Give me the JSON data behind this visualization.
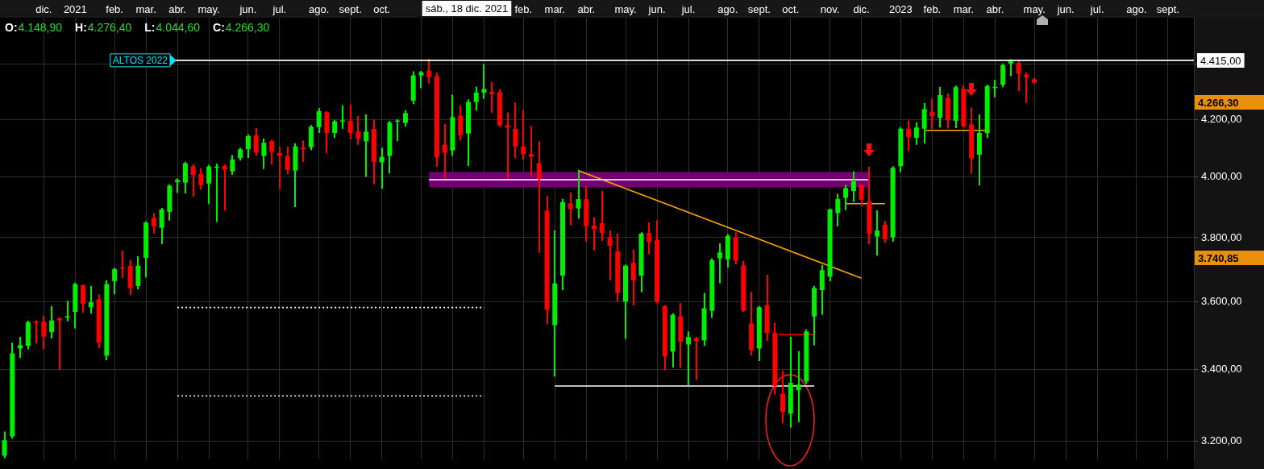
{
  "chart_data": {
    "type": "candlestick",
    "log": true,
    "grid": true,
    "legend": false,
    "xlim": [
      "2020-10-27",
      "2023-09-25"
    ],
    "xticks": [
      {
        "value": "2020-12-05",
        "label": "dic."
      },
      {
        "value": "2021-01-02",
        "label": "2021"
      },
      {
        "value": "2021-02-06",
        "label": "feb."
      },
      {
        "value": "2021-03-06",
        "label": "mar."
      },
      {
        "value": "2021-04-03",
        "label": "abr."
      },
      {
        "value": "2021-05-01",
        "label": "may."
      },
      {
        "value": "2021-06-05",
        "label": "jun."
      },
      {
        "value": "2021-07-03",
        "label": "jul."
      },
      {
        "value": "2021-08-07",
        "label": "ago."
      },
      {
        "value": "2021-09-04",
        "label": "sept."
      },
      {
        "value": "2021-10-02",
        "label": "oct."
      },
      {
        "value": "2021-11-06",
        "label": null
      },
      {
        "value": "2021-12-04",
        "label": null
      },
      {
        "value": "2022-01-01",
        "label": null
      },
      {
        "value": "2022-02-05",
        "label": "feb."
      },
      {
        "value": "2022-03-05",
        "label": "mar."
      },
      {
        "value": "2022-04-02",
        "label": "abr."
      },
      {
        "value": "2022-05-07",
        "label": "may."
      },
      {
        "value": "2022-06-04",
        "label": "jun."
      },
      {
        "value": "2022-07-02",
        "label": "jul."
      },
      {
        "value": "2022-08-06",
        "label": "ago."
      },
      {
        "value": "2022-09-03",
        "label": "sept."
      },
      {
        "value": "2022-10-01",
        "label": "oct."
      },
      {
        "value": "2022-11-05",
        "label": "nov."
      },
      {
        "value": "2022-12-03",
        "label": "dic."
      },
      {
        "value": "2023-01-07",
        "label": "2023"
      },
      {
        "value": "2023-02-04",
        "label": "feb."
      },
      {
        "value": "2023-03-04",
        "label": "mar."
      },
      {
        "value": "2023-04-01",
        "label": "abr."
      },
      {
        "value": "2023-05-06",
        "label": "may."
      },
      {
        "value": "2023-06-03",
        "label": "jun."
      },
      {
        "value": "2023-07-01",
        "label": "jul."
      },
      {
        "value": "2023-08-05",
        "label": "ago."
      },
      {
        "value": "2023-09-02",
        "label": "sept."
      }
    ],
    "ylim": [
      3150,
      4577
    ],
    "yticks": [
      {
        "value": 3200,
        "label": "3.200,00"
      },
      {
        "value": 3400,
        "label": "3.400,00"
      },
      {
        "value": 3600,
        "label": "3.600,00"
      },
      {
        "value": 3800,
        "label": "3.800,00"
      },
      {
        "value": 4000,
        "label": "4.000,00"
      },
      {
        "value": 4200,
        "label": "4.200,00"
      },
      {
        "value": 4400,
        "label": null
      }
    ],
    "x": [
      "2020-10-31",
      "2020-11-07",
      "2020-11-14",
      "2020-11-21",
      "2020-11-28",
      "2020-12-05",
      "2020-12-12",
      "2020-12-19",
      "2020-12-26",
      "2021-01-02",
      "2021-01-09",
      "2021-01-16",
      "2021-01-23",
      "2021-01-30",
      "2021-02-06",
      "2021-02-13",
      "2021-02-20",
      "2021-02-27",
      "2021-03-06",
      "2021-03-13",
      "2021-03-20",
      "2021-03-27",
      "2021-04-03",
      "2021-04-10",
      "2021-04-17",
      "2021-04-24",
      "2021-05-01",
      "2021-05-08",
      "2021-05-15",
      "2021-05-22",
      "2021-05-29",
      "2021-06-05",
      "2021-06-12",
      "2021-06-19",
      "2021-06-26",
      "2021-07-03",
      "2021-07-10",
      "2021-07-17",
      "2021-07-24",
      "2021-07-31",
      "2021-08-07",
      "2021-08-14",
      "2021-08-21",
      "2021-08-28",
      "2021-09-04",
      "2021-09-11",
      "2021-09-18",
      "2021-09-25",
      "2021-10-02",
      "2021-10-09",
      "2021-10-16",
      "2021-10-23",
      "2021-10-30",
      "2021-11-06",
      "2021-11-13",
      "2021-11-20",
      "2021-11-27",
      "2021-12-04",
      "2021-12-11",
      "2021-12-18",
      "2021-12-25",
      "2022-01-01",
      "2022-01-08",
      "2022-01-15",
      "2022-01-22",
      "2022-01-29",
      "2022-02-05",
      "2022-02-12",
      "2022-02-19",
      "2022-02-26",
      "2022-03-05",
      "2022-03-12",
      "2022-03-19",
      "2022-03-26",
      "2022-04-02",
      "2022-04-09",
      "2022-04-16",
      "2022-04-23",
      "2022-04-30",
      "2022-05-07",
      "2022-05-14",
      "2022-05-21",
      "2022-05-28",
      "2022-06-04",
      "2022-06-11",
      "2022-06-18",
      "2022-06-25",
      "2022-07-02",
      "2022-07-09",
      "2022-07-16",
      "2022-07-23",
      "2022-07-30",
      "2022-08-06",
      "2022-08-13",
      "2022-08-20",
      "2022-08-27",
      "2022-09-03",
      "2022-09-10",
      "2022-09-17",
      "2022-09-24",
      "2022-10-01",
      "2022-10-08",
      "2022-10-15",
      "2022-10-22",
      "2022-10-29",
      "2022-11-05",
      "2022-11-12",
      "2022-11-19",
      "2022-11-26",
      "2022-12-03",
      "2022-12-10",
      "2022-12-17",
      "2022-12-24",
      "2022-12-31",
      "2023-01-07",
      "2023-01-14",
      "2023-01-21",
      "2023-01-28",
      "2023-02-04",
      "2023-02-11",
      "2023-02-18",
      "2023-02-25",
      "2023-03-04",
      "2023-03-11",
      "2023-03-18",
      "2023-03-25",
      "2023-04-01",
      "2023-04-08",
      "2023-04-15",
      "2023-04-22",
      "2023-04-29",
      "2023-05-06"
    ],
    "ohlc": [
      [
        3160,
        3223,
        3155,
        3202
      ],
      [
        3212,
        3475,
        3208,
        3446
      ],
      [
        3460,
        3492,
        3435,
        3470
      ],
      [
        3468,
        3540,
        3460,
        3538
      ],
      [
        3540,
        3541,
        3477,
        3536
      ],
      [
        3540,
        3555,
        3460,
        3495
      ],
      [
        3508,
        3584,
        3492,
        3543
      ],
      [
        3549,
        3551,
        3400,
        3543
      ],
      [
        3552,
        3600,
        3543,
        3556
      ],
      [
        3569,
        3656,
        3522,
        3654
      ],
      [
        3650,
        3651,
        3569,
        3593
      ],
      [
        3583,
        3646,
        3566,
        3598
      ],
      [
        3607,
        3620,
        3463,
        3477
      ],
      [
        3439,
        3663,
        3428,
        3654
      ],
      [
        3663,
        3702,
        3625,
        3700
      ],
      [
        3706,
        3756,
        3675,
        3702
      ],
      [
        3711,
        3727,
        3622,
        3641
      ],
      [
        3648,
        3738,
        3640,
        3711
      ],
      [
        3736,
        3850,
        3677,
        3849
      ],
      [
        3864,
        3878,
        3816,
        3837
      ],
      [
        3832,
        3894,
        3782,
        3892
      ],
      [
        3884,
        3973,
        3858,
        3971
      ],
      [
        3983,
        3993,
        3950,
        3990
      ],
      [
        3981,
        4049,
        3948,
        4047
      ],
      [
        4036,
        4042,
        3936,
        4007
      ],
      [
        4011,
        4027,
        3960,
        3973
      ],
      [
        3978,
        4039,
        3912,
        4036
      ],
      [
        4034,
        4043,
        3854,
        4036
      ],
      [
        4038,
        4040,
        3890,
        4025
      ],
      [
        4019,
        4072,
        4010,
        4060
      ],
      [
        4065,
        4098,
        4059,
        4095
      ],
      [
        4095,
        4144,
        4067,
        4141
      ],
      [
        4144,
        4166,
        4076,
        4083
      ],
      [
        4072,
        4130,
        4030,
        4118
      ],
      [
        4123,
        4125,
        4045,
        4086
      ],
      [
        4082,
        4102,
        3963,
        4073
      ],
      [
        4072,
        4102,
        4012,
        4024
      ],
      [
        4022,
        4113,
        3902,
        4105
      ],
      [
        4101,
        4123,
        4054,
        4095
      ],
      [
        4102,
        4177,
        4095,
        4174
      ],
      [
        4172,
        4237,
        4155,
        4229
      ],
      [
        4226,
        4227,
        4084,
        4152
      ],
      [
        4152,
        4195,
        4137,
        4193
      ],
      [
        4194,
        4247,
        4170,
        4196
      ],
      [
        4195,
        4250,
        4132,
        4152
      ],
      [
        4157,
        4209,
        4113,
        4132
      ],
      [
        4123,
        4215,
        4003,
        4157
      ],
      [
        4166,
        4195,
        3978,
        4052
      ],
      [
        4050,
        4098,
        3963,
        4069
      ],
      [
        4072,
        4192,
        4015,
        4189
      ],
      [
        4192,
        4198,
        4126,
        4196
      ],
      [
        4187,
        4230,
        4177,
        4222
      ],
      [
        4267,
        4371,
        4257,
        4359
      ],
      [
        4359,
        4373,
        4315,
        4371
      ],
      [
        4377,
        4418,
        4332,
        4352
      ],
      [
        4356,
        4367,
        4037,
        4067
      ],
      [
        4111,
        4182,
        3998,
        4083
      ],
      [
        4091,
        4285,
        4075,
        4208
      ],
      [
        4213,
        4247,
        4128,
        4144
      ],
      [
        4150,
        4269,
        4040,
        4262
      ],
      [
        4262,
        4315,
        4234,
        4296
      ],
      [
        4296,
        4398,
        4276,
        4309
      ],
      [
        4298,
        4332,
        4226,
        4290
      ],
      [
        4298,
        4306,
        4176,
        4179
      ],
      [
        4179,
        4222,
        3998,
        4171
      ],
      [
        4166,
        4257,
        4067,
        4105
      ],
      [
        4105,
        4230,
        4062,
        4078
      ],
      [
        4078,
        4174,
        4003,
        4069
      ],
      [
        4047,
        4120,
        3754,
        3994
      ],
      [
        3888,
        3935,
        3534,
        3575
      ],
      [
        3529,
        3821,
        3381,
        3656
      ],
      [
        3680,
        3924,
        3637,
        3916
      ],
      [
        3912,
        3945,
        3842,
        3892
      ],
      [
        3895,
        4022,
        3864,
        3926
      ],
      [
        3926,
        3968,
        3790,
        3837
      ],
      [
        3839,
        3864,
        3762,
        3828
      ],
      [
        3847,
        3951,
        3792,
        3815
      ],
      [
        3801,
        3821,
        3668,
        3774
      ],
      [
        3756,
        3811,
        3603,
        3627
      ],
      [
        3600,
        3712,
        3491,
        3711
      ],
      [
        3720,
        3760,
        3591,
        3665
      ],
      [
        3680,
        3815,
        3631,
        3813
      ],
      [
        3815,
        3847,
        3750,
        3786
      ],
      [
        3793,
        3854,
        3597,
        3600
      ],
      [
        3586,
        3587,
        3400,
        3437
      ],
      [
        3451,
        3562,
        3407,
        3560
      ],
      [
        3556,
        3593,
        3406,
        3480
      ],
      [
        3472,
        3508,
        3356,
        3494
      ],
      [
        3490,
        3492,
        3372,
        3482
      ],
      [
        3484,
        3624,
        3470,
        3580
      ],
      [
        3572,
        3731,
        3553,
        3729
      ],
      [
        3734,
        3779,
        3659,
        3753
      ],
      [
        3731,
        3809,
        3708,
        3806
      ],
      [
        3801,
        3815,
        3718,
        3727
      ],
      [
        3712,
        3724,
        3571,
        3572
      ],
      [
        3534,
        3627,
        3442,
        3455
      ],
      [
        3460,
        3584,
        3426,
        3583
      ],
      [
        3589,
        3680,
        3485,
        3506
      ],
      [
        3506,
        3534,
        3330,
        3352
      ],
      [
        3330,
        3394,
        3250,
        3279
      ],
      [
        3275,
        3492,
        3238,
        3361
      ],
      [
        3340,
        3450,
        3253,
        3356
      ],
      [
        3365,
        3514,
        3360,
        3510
      ],
      [
        3555,
        3646,
        3472,
        3642
      ],
      [
        3635,
        3711,
        3562,
        3697
      ],
      [
        3677,
        3892,
        3665,
        3892
      ],
      [
        3880,
        3941,
        3839,
        3926
      ],
      [
        3930,
        3971,
        3892,
        3963
      ],
      [
        3953,
        4017,
        3919,
        3986
      ],
      [
        3974,
        3975,
        3905,
        3924
      ],
      [
        3919,
        4033,
        3781,
        3812
      ],
      [
        3804,
        3886,
        3745,
        3823
      ],
      [
        3842,
        3852,
        3786,
        3795
      ],
      [
        3801,
        4034,
        3790,
        4031
      ],
      [
        4037,
        4170,
        4019,
        4167
      ],
      [
        4167,
        4193,
        4091,
        4137
      ],
      [
        4135,
        4187,
        4113,
        4171
      ],
      [
        4167,
        4256,
        4118,
        4237
      ],
      [
        4227,
        4271,
        4170,
        4211
      ],
      [
        4206,
        4314,
        4174,
        4287
      ],
      [
        4277,
        4290,
        4171,
        4197
      ],
      [
        4195,
        4319,
        4172,
        4316
      ],
      [
        4310,
        4320,
        4173,
        4175
      ],
      [
        4182,
        4240,
        4014,
        4064
      ],
      [
        4076,
        4215,
        3975,
        4152
      ],
      [
        4151,
        4322,
        4137,
        4320
      ],
      [
        4315,
        4340,
        4282,
        4317
      ],
      [
        4325,
        4400,
        4319,
        4397
      ],
      [
        4403,
        4416,
        4359,
        4414
      ],
      [
        4405,
        4411,
        4304,
        4365
      ],
      [
        4362,
        4367,
        4262,
        4351
      ],
      [
        4345,
        4348,
        4331,
        4332
      ]
    ],
    "colors": [
      "#00ee00",
      "#00ee00",
      "#00ee00",
      "#00ee00",
      "#ff0000",
      "#ff0000",
      "#00ee00",
      "#ff0000",
      "#00ee00",
      "#00ee00",
      "#ff0000",
      "#00ee00",
      "#ff0000",
      "#00ee00",
      "#00ee00",
      "#ff0000",
      "#ff0000",
      "#00ee00",
      "#00ee00",
      "#ff0000",
      "#00ee00",
      "#00ee00",
      "#00ee00",
      "#00ee00",
      "#ff0000",
      "#ff0000",
      "#00ee00",
      "#00ee00",
      "#ff0000",
      "#00ee00",
      "#00ee00",
      "#00ee00",
      "#ff0000",
      "#00ee00",
      "#ff0000",
      "#ff0000",
      "#ff0000",
      "#00ee00",
      "#ff0000",
      "#00ee00",
      "#00ee00",
      "#ff0000",
      "#00ee00",
      "#00ee00",
      "#ff0000",
      "#ff0000",
      "#00ee00",
      "#ff0000",
      "#00ee00",
      "#00ee00",
      "#00ee00",
      "#00ee00",
      "#00ee00",
      "#00ee00",
      "#ff0000",
      "#ff0000",
      "#ff0000",
      "#00ee00",
      "#ff0000",
      "#00ee00",
      "#00ee00",
      "#00ee00",
      "#ff0000",
      "#ff0000",
      "#ff0000",
      "#ff0000",
      "#ff0000",
      "#ff0000",
      "#ff0000",
      "#ff0000",
      "#00ee00",
      "#00ee00",
      "#ff0000",
      "#00ee00",
      "#ff0000",
      "#ff0000",
      "#ff0000",
      "#ff0000",
      "#ff0000",
      "#00ee00",
      "#ff0000",
      "#00ee00",
      "#ff0000",
      "#ff0000",
      "#ff0000",
      "#00ee00",
      "#ff0000",
      "#00ee00",
      "#ff0000",
      "#00ee00",
      "#00ee00",
      "#00ee00",
      "#00ee00",
      "#ff0000",
      "#ff0000",
      "#ff0000",
      "#00ee00",
      "#ff0000",
      "#ff0000",
      "#ff0000",
      "#00ee00",
      "#00ee00",
      "#00ee00",
      "#00ee00",
      "#00ee00",
      "#00ee00",
      "#00ee00",
      "#00ee00",
      "#00ee00",
      "#ff0000",
      "#ff0000",
      "#00ee00",
      "#ff0000",
      "#00ee00",
      "#00ee00",
      "#ff0000",
      "#00ee00",
      "#00ee00",
      "#ff0000",
      "#00ee00",
      "#ff0000",
      "#00ee00",
      "#ff0000",
      "#ff0000",
      "#00ee00",
      "#00ee00",
      "#00ee00",
      "#00ee00",
      "#00ee00",
      "#ff0000",
      "#ff0000",
      "#ff0000"
    ],
    "series": [
      {
        "type": "line",
        "color": "#f0c0f0",
        "x": [
          "2021-11-13",
          "2022-12-10"
        ],
        "values": [
          3991,
          3991
        ],
        "lower": [
          3966,
          3966
        ],
        "upper": [
          4017,
          4017
        ]
      },
      {
        "type": "line",
        "color": "#ffffff",
        "line_style": "dotted",
        "x": [
          "2021-04-03",
          "2022-01-01"
        ],
        "values": [
          3582,
          3582
        ]
      },
      {
        "type": "line",
        "color": "#ffffff",
        "line_style": "dotted",
        "x": [
          "2021-04-03",
          "2022-01-01"
        ],
        "values": [
          3324,
          3324
        ]
      },
      {
        "type": "line",
        "color": "#ffa500",
        "x": [
          "2022-03-26",
          "2022-12-03"
        ],
        "values": [
          4022,
          3672
        ]
      },
      {
        "type": "line",
        "color": "#ffffff",
        "x": [
          "2022-03-05",
          "2022-10-22"
        ],
        "values": [
          3352,
          3352
        ]
      },
      {
        "type": "line",
        "color": "#ff0000",
        "x": [
          "2022-09-20",
          "2022-10-22"
        ],
        "values": [
          3501,
          3501
        ]
      },
      {
        "type": "line",
        "color": "#ffa500",
        "x": [
          "2022-11-19",
          "2022-12-24"
        ],
        "values": [
          3911,
          3911
        ]
      },
      {
        "type": "line",
        "color": "#ffa500",
        "x": [
          "2023-01-28",
          "2023-03-25"
        ],
        "values": [
          4161,
          4161
        ]
      }
    ],
    "ref_lines": [
      {
        "axis": "y",
        "value": 4415,
        "label": "ALTOS 2022",
        "color": "#ffffff"
      }
    ],
    "annotations": [
      "O:4.148,90",
      "H:4.276,40",
      "L:4.044,60",
      "C:4.266,30",
      "sáb., 18 dic. 2021",
      "4.415,00",
      "4.266,30",
      "3.740,85"
    ]
  }
}
